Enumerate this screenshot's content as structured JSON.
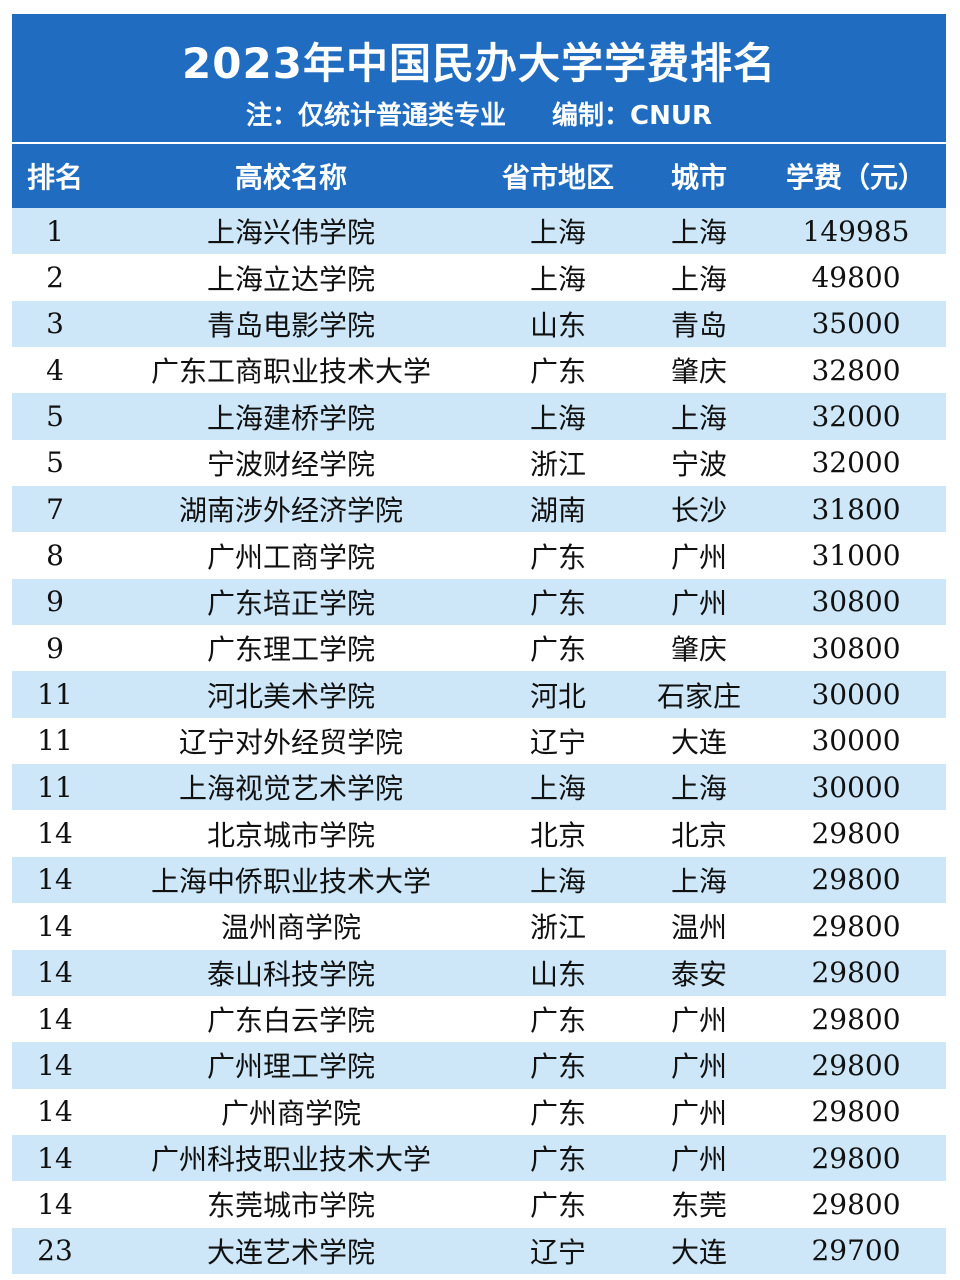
{
  "title": "2023年中国民办大学学费排名",
  "subtitle": {
    "note": "注：仅统计普通类专业",
    "compiler": "编制：CNUR"
  },
  "headers": {
    "rank": "排名",
    "name": "高校名称",
    "province": "省市地区",
    "city": "城市",
    "fee": "学费（元）"
  },
  "colors": {
    "header_bg": "#1f6cc0",
    "stripe": "#cde7f8"
  },
  "rows": [
    {
      "rank": "1",
      "name": "上海兴伟学院",
      "province": "上海",
      "city": "上海",
      "fee": "149985"
    },
    {
      "rank": "2",
      "name": "上海立达学院",
      "province": "上海",
      "city": "上海",
      "fee": "49800"
    },
    {
      "rank": "3",
      "name": "青岛电影学院",
      "province": "山东",
      "city": "青岛",
      "fee": "35000"
    },
    {
      "rank": "4",
      "name": "广东工商职业技术大学",
      "province": "广东",
      "city": "肇庆",
      "fee": "32800"
    },
    {
      "rank": "5",
      "name": "上海建桥学院",
      "province": "上海",
      "city": "上海",
      "fee": "32000"
    },
    {
      "rank": "5",
      "name": "宁波财经学院",
      "province": "浙江",
      "city": "宁波",
      "fee": "32000"
    },
    {
      "rank": "7",
      "name": "湖南涉外经济学院",
      "province": "湖南",
      "city": "长沙",
      "fee": "31800"
    },
    {
      "rank": "8",
      "name": "广州工商学院",
      "province": "广东",
      "city": "广州",
      "fee": "31000"
    },
    {
      "rank": "9",
      "name": "广东培正学院",
      "province": "广东",
      "city": "广州",
      "fee": "30800"
    },
    {
      "rank": "9",
      "name": "广东理工学院",
      "province": "广东",
      "city": "肇庆",
      "fee": "30800"
    },
    {
      "rank": "11",
      "name": "河北美术学院",
      "province": "河北",
      "city": "石家庄",
      "fee": "30000"
    },
    {
      "rank": "11",
      "name": "辽宁对外经贸学院",
      "province": "辽宁",
      "city": "大连",
      "fee": "30000"
    },
    {
      "rank": "11",
      "name": "上海视觉艺术学院",
      "province": "上海",
      "city": "上海",
      "fee": "30000"
    },
    {
      "rank": "14",
      "name": "北京城市学院",
      "province": "北京",
      "city": "北京",
      "fee": "29800"
    },
    {
      "rank": "14",
      "name": "上海中侨职业技术大学",
      "province": "上海",
      "city": "上海",
      "fee": "29800"
    },
    {
      "rank": "14",
      "name": "温州商学院",
      "province": "浙江",
      "city": "温州",
      "fee": "29800"
    },
    {
      "rank": "14",
      "name": "泰山科技学院",
      "province": "山东",
      "city": "泰安",
      "fee": "29800"
    },
    {
      "rank": "14",
      "name": "广东白云学院",
      "province": "广东",
      "city": "广州",
      "fee": "29800"
    },
    {
      "rank": "14",
      "name": "广州理工学院",
      "province": "广东",
      "city": "广州",
      "fee": "29800"
    },
    {
      "rank": "14",
      "name": "广州商学院",
      "province": "广东",
      "city": "广州",
      "fee": "29800"
    },
    {
      "rank": "14",
      "name": "广州科技职业技术大学",
      "province": "广东",
      "city": "广州",
      "fee": "29800"
    },
    {
      "rank": "14",
      "name": "东莞城市学院",
      "province": "广东",
      "city": "东莞",
      "fee": "29800"
    },
    {
      "rank": "23",
      "name": "大连艺术学院",
      "province": "辽宁",
      "city": "大连",
      "fee": "29700"
    }
  ]
}
